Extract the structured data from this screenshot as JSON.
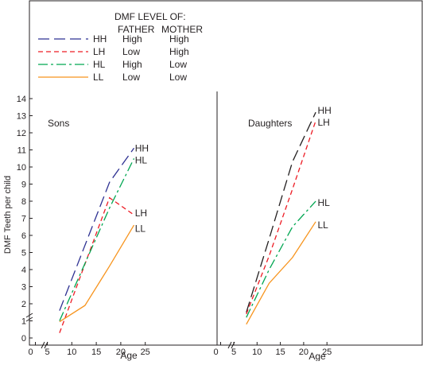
{
  "legend": {
    "header_line1": "DMF LEVEL OF:",
    "header_father": "FATHER",
    "header_mother": "MOTHER",
    "rows": [
      {
        "code": "HH",
        "father": "High",
        "mother": "High",
        "color": "#2e3192",
        "dash": "14,6"
      },
      {
        "code": "LH",
        "father": "Low",
        "mother": "High",
        "color": "#ed1c24",
        "dash": "6,4"
      },
      {
        "code": "HL",
        "father": "High",
        "mother": "Low",
        "color": "#00a651",
        "dash": "12,4,3,4"
      },
      {
        "code": "LL",
        "father": "Low",
        "mother": "Low",
        "color": "#f7941d",
        "dash": ""
      }
    ]
  },
  "chart_data": {
    "type": "line",
    "ylabel": "DMF Teeth per child",
    "ylim": [
      0,
      14
    ],
    "yticks": [
      0,
      1,
      2,
      3,
      4,
      5,
      6,
      7,
      8,
      9,
      10,
      11,
      12,
      13,
      14
    ],
    "panels": [
      {
        "title": "Sons",
        "xlabel": "Age",
        "xlim": [
          5,
          30
        ],
        "xticks": [
          5,
          10,
          15,
          20,
          25
        ],
        "series": [
          {
            "name": "HH",
            "color": "#2e3192",
            "dash": "14,6",
            "points": [
              [
                7.5,
                1.6
              ],
              [
                17.7,
                9.1
              ],
              [
                22.7,
                11.1
              ]
            ]
          },
          {
            "name": "LH",
            "color": "#ed1c24",
            "dash": "6,4",
            "points": [
              [
                7.5,
                0.3
              ],
              [
                17.7,
                8.2
              ],
              [
                22.7,
                7.2
              ]
            ]
          },
          {
            "name": "HL",
            "color": "#00a651",
            "dash": "12,4,3,4",
            "points": [
              [
                7.5,
                1.0
              ],
              [
                17.7,
                7.6
              ],
              [
                22.7,
                10.5
              ]
            ]
          },
          {
            "name": "LL",
            "color": "#f7941d",
            "dash": "",
            "points": [
              [
                7.5,
                0.95
              ],
              [
                12.7,
                1.9
              ],
              [
                17.7,
                4.2
              ],
              [
                22.7,
                6.6
              ]
            ]
          }
        ],
        "end_labels": [
          {
            "name": "HH",
            "x": 22.9,
            "y": 11.1
          },
          {
            "name": "HL",
            "x": 22.9,
            "y": 10.4
          },
          {
            "name": "LH",
            "x": 22.9,
            "y": 7.3
          },
          {
            "name": "LL",
            "x": 22.9,
            "y": 6.4
          }
        ]
      },
      {
        "title": "Daughters",
        "xlabel": "Age",
        "xlim": [
          0,
          35
        ],
        "xticks": [
          5,
          10,
          15,
          20,
          25
        ],
        "series": [
          {
            "name": "HH",
            "color": "#231f20",
            "dash": "14,6",
            "points": [
              [
                7.7,
                1.5
              ],
              [
                12.6,
                5.8
              ],
              [
                17.6,
                10.3
              ],
              [
                22.6,
                13.2
              ]
            ]
          },
          {
            "name": "LH",
            "color": "#ed1c24",
            "dash": "6,4",
            "points": [
              [
                7.7,
                1.4
              ],
              [
                12.6,
                4.8
              ],
              [
                17.6,
                8.7
              ],
              [
                22.6,
                12.7
              ]
            ]
          },
          {
            "name": "HL",
            "color": "#00a651",
            "dash": "12,4,3,4",
            "points": [
              [
                7.7,
                1.2
              ],
              [
                12.6,
                4.0
              ],
              [
                17.6,
                6.5
              ],
              [
                22.6,
                8.0
              ]
            ]
          },
          {
            "name": "LL",
            "color": "#f7941d",
            "dash": "",
            "points": [
              [
                7.7,
                0.8
              ],
              [
                12.6,
                3.2
              ],
              [
                17.6,
                4.7
              ],
              [
                22.6,
                6.8
              ]
            ]
          }
        ],
        "end_labels": [
          {
            "name": "HH",
            "x": 23.0,
            "y": 13.3
          },
          {
            "name": "LH",
            "x": 23.0,
            "y": 12.6
          },
          {
            "name": "HL",
            "x": 23.0,
            "y": 7.9
          },
          {
            "name": "LL",
            "x": 23.0,
            "y": 6.6
          }
        ]
      }
    ]
  }
}
